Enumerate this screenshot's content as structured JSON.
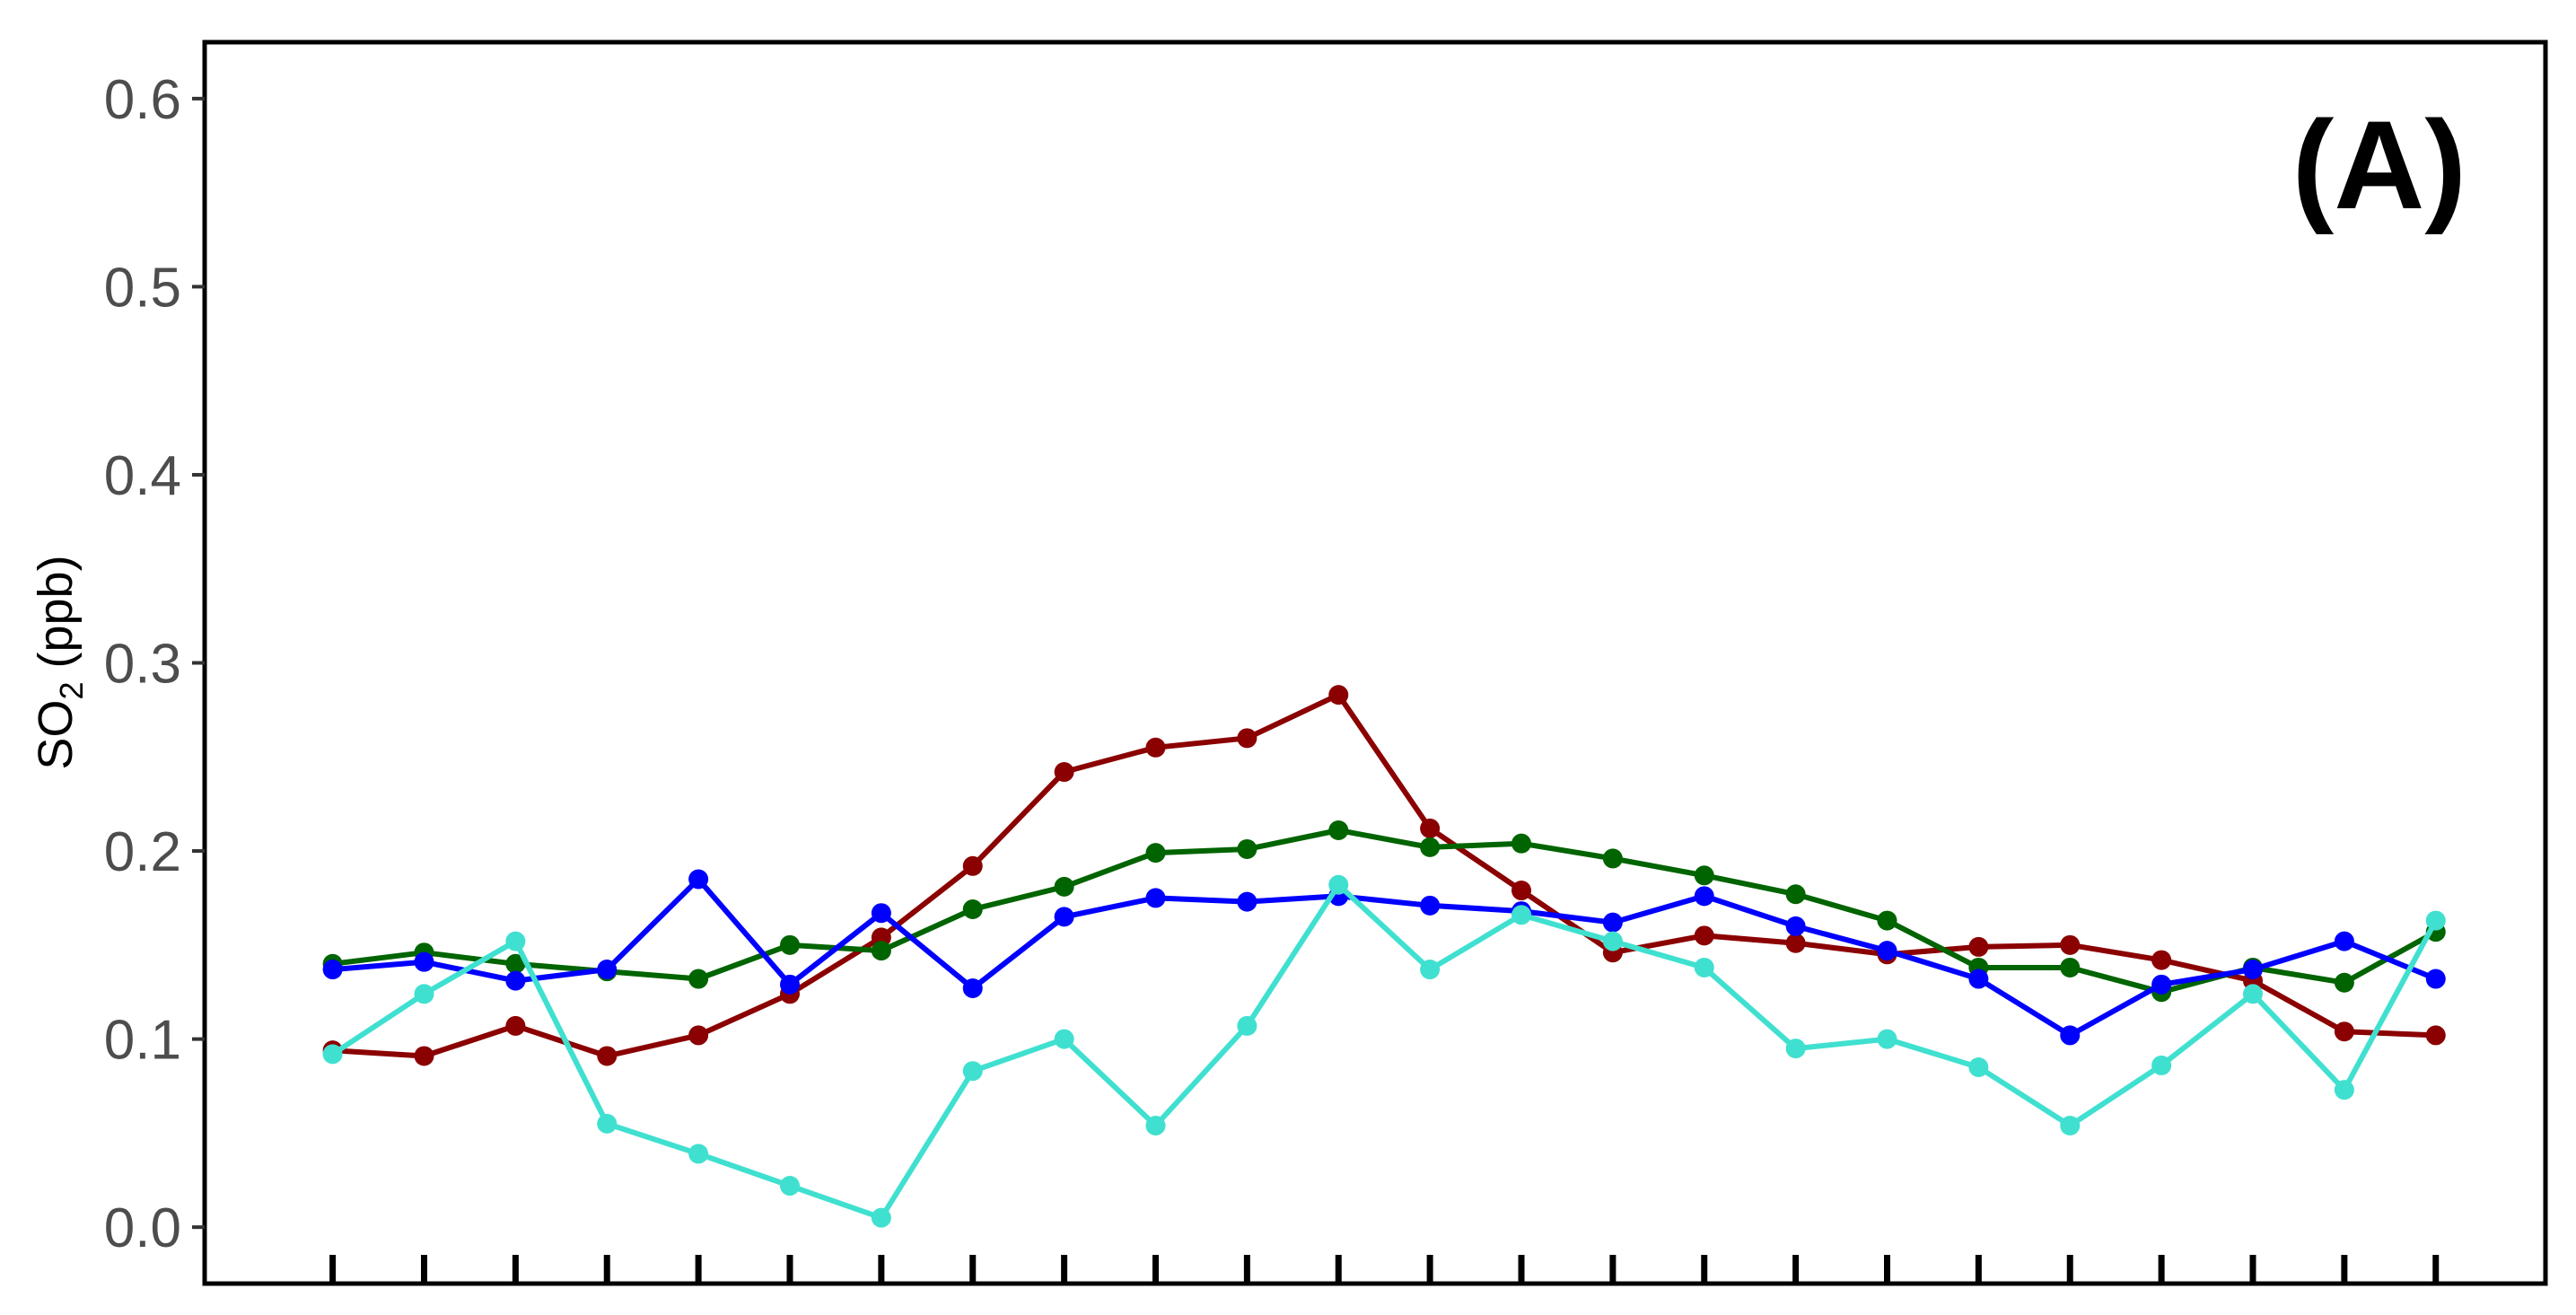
{
  "chart_data": {
    "type": "line",
    "panel_label": "(A)",
    "ylabel": {
      "main": "SO",
      "subscript": "2",
      "unit": " (ppb)"
    },
    "ylim": [
      -0.03,
      0.63
    ],
    "yticks": [
      "0.0",
      "0.1",
      "0.2",
      "0.3",
      "0.4",
      "0.5",
      "0.6"
    ],
    "ytick_values": [
      0,
      0.1,
      0.2,
      0.3,
      0.4,
      0.5,
      0.6
    ],
    "x": [
      1,
      2,
      3,
      4,
      5,
      6,
      7,
      8,
      9,
      10,
      11,
      12,
      13,
      14,
      15,
      16,
      17,
      18,
      19,
      20,
      21,
      22,
      23,
      24
    ],
    "xlim": [
      -0.4,
      25.2
    ],
    "grid": false,
    "series": [
      {
        "color": "#8b0000",
        "values": [
          0.094,
          0.091,
          0.107,
          0.091,
          0.102,
          0.124,
          0.154,
          0.192,
          0.242,
          0.255,
          0.26,
          0.283,
          0.212,
          0.179,
          0.146,
          0.155,
          0.151,
          0.145,
          0.149,
          0.15,
          0.142,
          0.131,
          0.104,
          0.102
        ]
      },
      {
        "color": "#006400",
        "values": [
          0.14,
          0.146,
          0.14,
          0.136,
          0.132,
          0.15,
          0.147,
          0.169,
          0.181,
          0.199,
          0.201,
          0.211,
          0.202,
          0.204,
          0.196,
          0.187,
          0.177,
          0.163,
          0.138,
          0.138,
          0.125,
          0.138,
          0.13,
          0.157
        ]
      },
      {
        "color": "#0000ff",
        "values": [
          0.137,
          0.141,
          0.131,
          0.137,
          0.185,
          0.129,
          0.167,
          0.127,
          0.165,
          0.175,
          0.173,
          0.176,
          0.171,
          0.168,
          0.162,
          0.176,
          0.16,
          0.147,
          0.132,
          0.102,
          0.129,
          0.137,
          0.152,
          0.132
        ]
      },
      {
        "color": "#40e0d0",
        "values": [
          0.092,
          0.124,
          0.152,
          0.055,
          0.039,
          0.022,
          0.005,
          0.083,
          0.1,
          0.054,
          0.107,
          0.182,
          0.137,
          0.166,
          0.152,
          0.138,
          0.095,
          0.1,
          0.085,
          0.054,
          0.086,
          0.124,
          0.073,
          0.163
        ]
      }
    ]
  }
}
